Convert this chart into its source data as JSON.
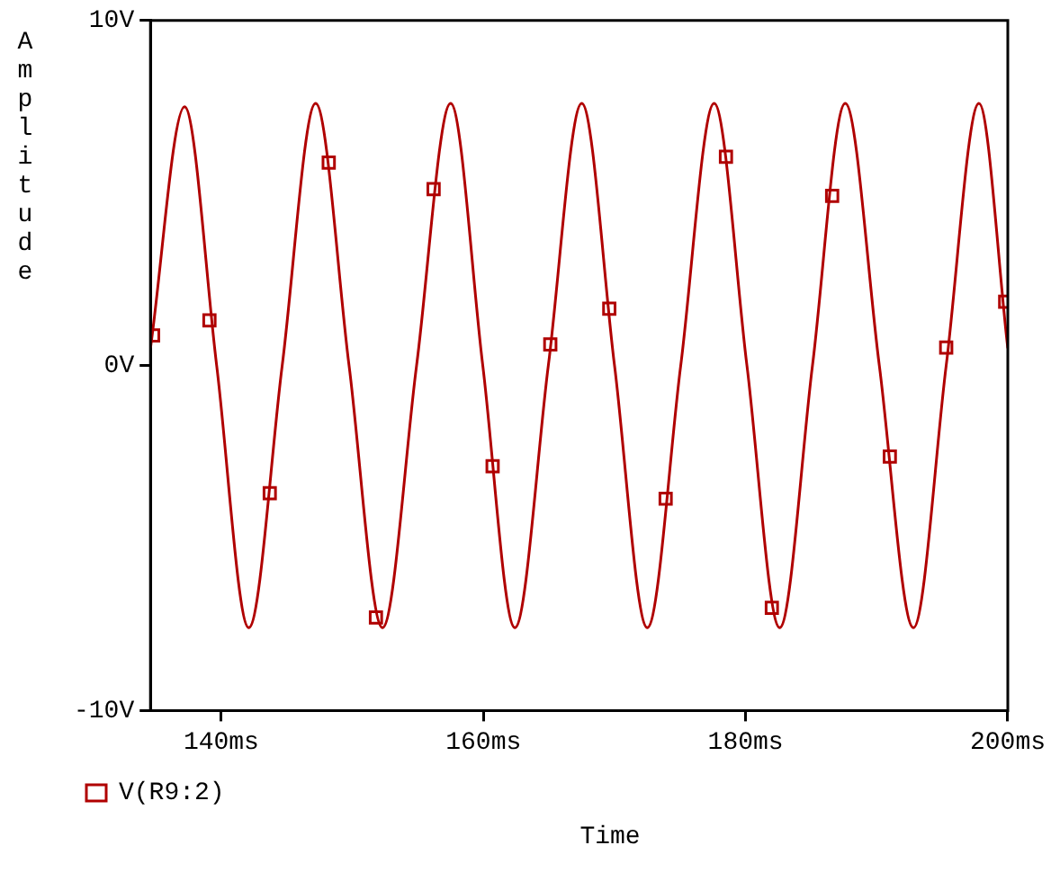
{
  "chart_data": {
    "type": "line",
    "xlabel": "Time",
    "ylabel": "Amplitude",
    "xlim": [
      134.6,
      200
    ],
    "xticks": [
      {
        "value": 140,
        "label": "140ms"
      },
      {
        "value": 160,
        "label": "160ms"
      },
      {
        "value": 180,
        "label": "180ms"
      },
      {
        "value": 200,
        "label": "200ms"
      }
    ],
    "ylim": [
      -10,
      10
    ],
    "yticks": [
      {
        "value": -10,
        "label": "-10V"
      },
      {
        "value": 0,
        "label": "0V"
      },
      {
        "value": 10,
        "label": "10V"
      }
    ],
    "grid": false,
    "legend": "bottom left",
    "series": [
      {
        "type": "line",
        "color": "#b00000",
        "marker": "none",
        "x": [
          134.6,
          137.2,
          139.65,
          142.1,
          144.65,
          147.2,
          149.75,
          152.3,
          154.9,
          157.5,
          159.95,
          162.4,
          164.95,
          167.5,
          170.0,
          172.5,
          175.05,
          177.6,
          180.1,
          182.6,
          185.1,
          187.6,
          190.2,
          192.8,
          195.3,
          197.8,
          200
        ],
        "values": [
          0.5,
          7.5,
          0,
          -7.6,
          0,
          7.6,
          0,
          -7.6,
          0,
          7.6,
          0,
          -7.6,
          0,
          7.6,
          0,
          -7.6,
          0,
          7.6,
          0,
          -7.6,
          0,
          7.6,
          0,
          -7.6,
          0,
          7.6,
          0.5
        ]
      },
      {
        "type": "scatter",
        "name": "V(R9:2)",
        "color": "#b00000",
        "marker": "square",
        "x": [
          134.8,
          139.1,
          143.7,
          148.2,
          151.8,
          156.2,
          160.7,
          165.1,
          169.6,
          173.9,
          178.5,
          182.0,
          186.6,
          191.0,
          195.3,
          199.8
        ],
        "values": [
          0.87,
          1.31,
          -3.7,
          5.88,
          -7.3,
          5.11,
          -2.92,
          0.61,
          1.65,
          -3.86,
          6.05,
          -7.02,
          4.92,
          -2.64,
          0.52,
          1.85
        ]
      }
    ]
  }
}
